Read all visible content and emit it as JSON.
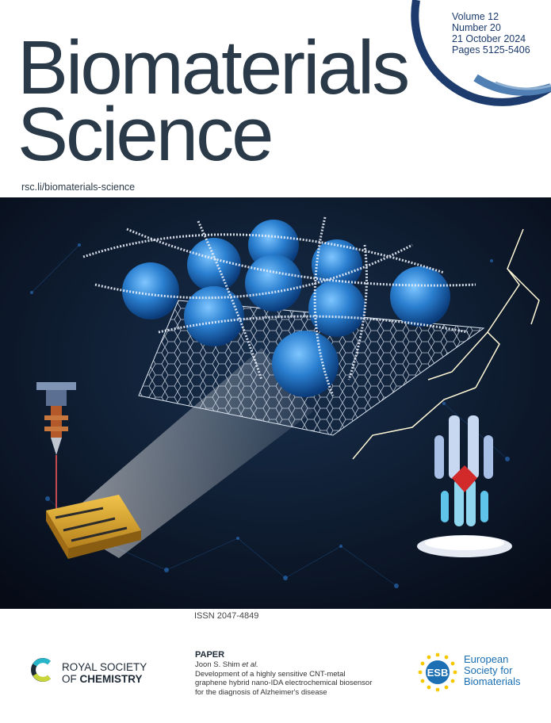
{
  "journal": {
    "title_line1": "Biomaterials",
    "title_line2": "Science",
    "url": "rsc.li/biomaterials-science"
  },
  "issue": {
    "volume": "Volume 12",
    "number": "Number 20",
    "date": "21 October 2024",
    "pages": "Pages 5125-5406"
  },
  "issn": "ISSN 2047-4849",
  "paper": {
    "label": "PAPER",
    "author": "Joon S. Shim",
    "author_suffix": "et al.",
    "line1": "Development of a highly sensitive CNT-metal",
    "line2": "graphene hybrid nano-IDA electrochemical biosensor",
    "line3": "for the diagnosis of Alzheimer's disease"
  },
  "publisher": {
    "line1": "ROYAL SOCIETY",
    "line2_prefix": "OF ",
    "line2_bold": "CHEMISTRY"
  },
  "society": {
    "logo_text": "ESB",
    "line1": "European",
    "line2": "Society for",
    "line3": "Biomaterials"
  },
  "colors": {
    "title": "#2b3a48",
    "accent_blue": "#1d3c6d",
    "esb_blue": "#1b6fb2",
    "esb_yellow": "#f6c800",
    "art_background": "#0b1424"
  },
  "icons": {
    "arc": "issue-arc-icon",
    "rsc": "rsc-c-logo-icon",
    "esb": "esb-star-circle-logo-icon"
  }
}
